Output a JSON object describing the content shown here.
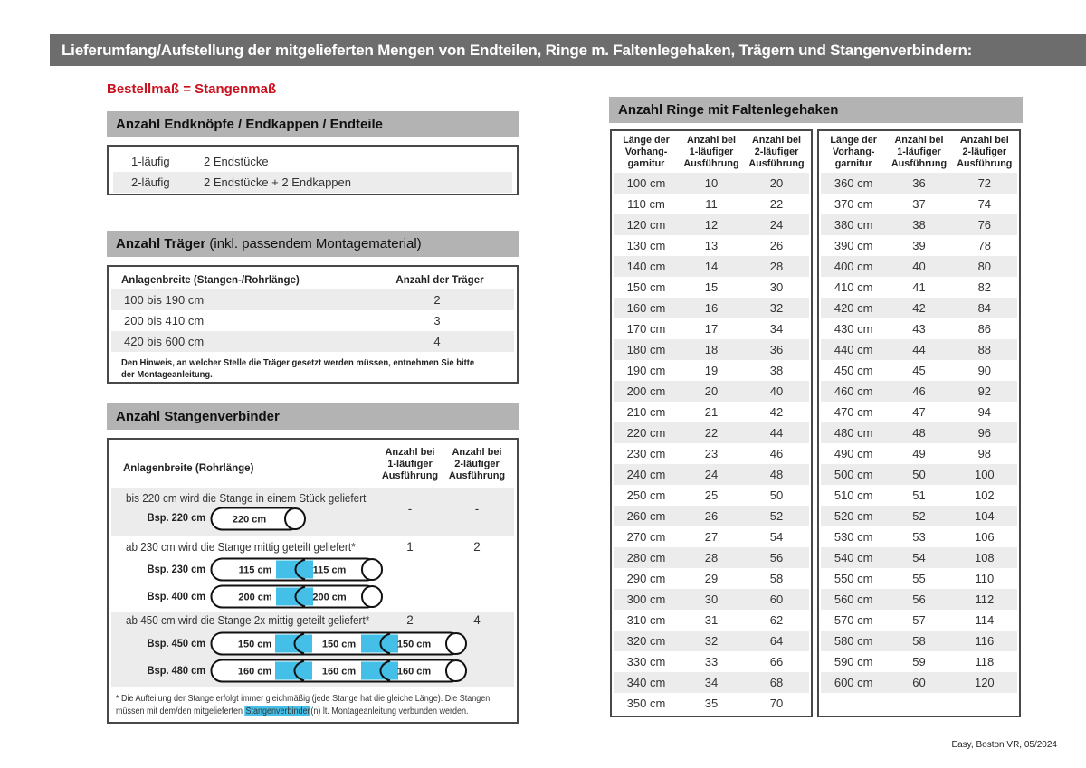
{
  "page": {
    "title": "Lieferumfang/Aufstellung der mitgelieferten Mengen von Endteilen, Ringe m. Faltenlegehaken, Trägern und Stangenverbindern:",
    "subtitle": "Bestellmaß = Stangenmaß",
    "footer": "Easy, Boston VR, 05/2024"
  },
  "colors": {
    "title_bar": "#6d6d6d",
    "section_bar": "#b3b3b3",
    "accent_red": "#c8121f",
    "connector_blue": "#44c0e8",
    "row_shade": "#ececec"
  },
  "endteile": {
    "header": "Anzahl Endknöpfe / Endkappen / Endteile",
    "rows": [
      {
        "label": "1-läufig",
        "value": "2 Endstücke"
      },
      {
        "label": "2-läufig",
        "value": "2 Endstücke + 2 Endkappen"
      }
    ]
  },
  "traeger": {
    "header_bold": "Anzahl Träger",
    "header_rest": " (inkl. passendem Montagematerial)",
    "col1": "Anlagenbreite (Stangen-/Rohrlänge)",
    "col2": "Anzahl der Träger",
    "rows": [
      {
        "range": "100 bis 190 cm",
        "count": "2"
      },
      {
        "range": "200 bis 410 cm",
        "count": "3"
      },
      {
        "range": "420 bis 600 cm",
        "count": "4"
      }
    ],
    "note_line1": "Den Hinweis, an welcher Stelle die Träger gesetzt werden müssen, entnehmen Sie bitte",
    "note_line2": "der Montageanleitung."
  },
  "verbinder": {
    "header": "Anzahl Stangenverbinder",
    "col_left": "Anlagenbreite (Rohrlänge)",
    "col1_lines": [
      "Anzahl bei",
      "1-läufiger",
      "Ausführung"
    ],
    "col2_lines": [
      "Anzahl bei",
      "2-läufiger",
      "Ausführung"
    ],
    "blocks": [
      {
        "text": "bis 220 cm wird die Stange in einem Stück geliefert",
        "v1": "-",
        "v2": "-",
        "rods": [
          {
            "label": "Bsp. 220 cm",
            "segments": [
              "220 cm"
            ]
          }
        ]
      },
      {
        "text": "ab 230 cm wird die Stange mittig geteilt geliefert*",
        "v1": "1",
        "v2": "2",
        "rods": [
          {
            "label": "Bsp. 230 cm",
            "segments": [
              "115 cm",
              "115 cm"
            ]
          },
          {
            "label": "Bsp. 400 cm",
            "segments": [
              "200 cm",
              "200 cm"
            ]
          }
        ]
      },
      {
        "text": "ab 450 cm wird die Stange 2x mittig geteilt geliefert*",
        "v1": "2",
        "v2": "4",
        "rods": [
          {
            "label": "Bsp. 450 cm",
            "segments": [
              "150 cm",
              "150 cm",
              "150 cm"
            ]
          },
          {
            "label": "Bsp. 480 cm",
            "segments": [
              "160 cm",
              "160 cm",
              "160 cm"
            ]
          }
        ]
      }
    ],
    "footnote": {
      "line1": "* Die Aufteilung der Stange erfolgt immer gleichmäßig (jede Stange hat die gleiche Länge). Die Stangen",
      "line2_pre": "müssen mit dem/den mitgelieferten ",
      "line2_mark": "Stangenverbinder",
      "line2_post": "(n) lt. Montageanleitung verbunden werden."
    }
  },
  "ringe": {
    "header": "Anzahl Ringe mit Faltenlegehaken",
    "col_lines": [
      [
        "Länge der",
        "Vorhang-",
        "garnitur"
      ],
      [
        "Anzahl bei",
        "1-läufiger",
        "Ausführung"
      ],
      [
        "Anzahl bei",
        "2-läufiger",
        "Ausführung"
      ]
    ],
    "table1": [
      [
        "100 cm",
        "10",
        "20"
      ],
      [
        "110 cm",
        "11",
        "22"
      ],
      [
        "120 cm",
        "12",
        "24"
      ],
      [
        "130 cm",
        "13",
        "26"
      ],
      [
        "140 cm",
        "14",
        "28"
      ],
      [
        "150 cm",
        "15",
        "30"
      ],
      [
        "160 cm",
        "16",
        "32"
      ],
      [
        "170 cm",
        "17",
        "34"
      ],
      [
        "180 cm",
        "18",
        "36"
      ],
      [
        "190 cm",
        "19",
        "38"
      ],
      [
        "200 cm",
        "20",
        "40"
      ],
      [
        "210 cm",
        "21",
        "42"
      ],
      [
        "220 cm",
        "22",
        "44"
      ],
      [
        "230 cm",
        "23",
        "46"
      ],
      [
        "240 cm",
        "24",
        "48"
      ],
      [
        "250 cm",
        "25",
        "50"
      ],
      [
        "260 cm",
        "26",
        "52"
      ],
      [
        "270 cm",
        "27",
        "54"
      ],
      [
        "280 cm",
        "28",
        "56"
      ],
      [
        "290 cm",
        "29",
        "58"
      ],
      [
        "300 cm",
        "30",
        "60"
      ],
      [
        "310 cm",
        "31",
        "62"
      ],
      [
        "320 cm",
        "32",
        "64"
      ],
      [
        "330 cm",
        "33",
        "66"
      ],
      [
        "340 cm",
        "34",
        "68"
      ],
      [
        "350 cm",
        "35",
        "70"
      ]
    ],
    "table2": [
      [
        "360 cm",
        "36",
        "72"
      ],
      [
        "370 cm",
        "37",
        "74"
      ],
      [
        "380 cm",
        "38",
        "76"
      ],
      [
        "390 cm",
        "39",
        "78"
      ],
      [
        "400 cm",
        "40",
        "80"
      ],
      [
        "410 cm",
        "41",
        "82"
      ],
      [
        "420 cm",
        "42",
        "84"
      ],
      [
        "430 cm",
        "43",
        "86"
      ],
      [
        "440 cm",
        "44",
        "88"
      ],
      [
        "450 cm",
        "45",
        "90"
      ],
      [
        "460 cm",
        "46",
        "92"
      ],
      [
        "470 cm",
        "47",
        "94"
      ],
      [
        "480 cm",
        "48",
        "96"
      ],
      [
        "490 cm",
        "49",
        "98"
      ],
      [
        "500 cm",
        "50",
        "100"
      ],
      [
        "510 cm",
        "51",
        "102"
      ],
      [
        "520 cm",
        "52",
        "104"
      ],
      [
        "530 cm",
        "53",
        "106"
      ],
      [
        "540 cm",
        "54",
        "108"
      ],
      [
        "550 cm",
        "55",
        "110"
      ],
      [
        "560 cm",
        "56",
        "112"
      ],
      [
        "570 cm",
        "57",
        "114"
      ],
      [
        "580 cm",
        "58",
        "116"
      ],
      [
        "590 cm",
        "59",
        "118"
      ],
      [
        "600 cm",
        "60",
        "120"
      ]
    ]
  }
}
